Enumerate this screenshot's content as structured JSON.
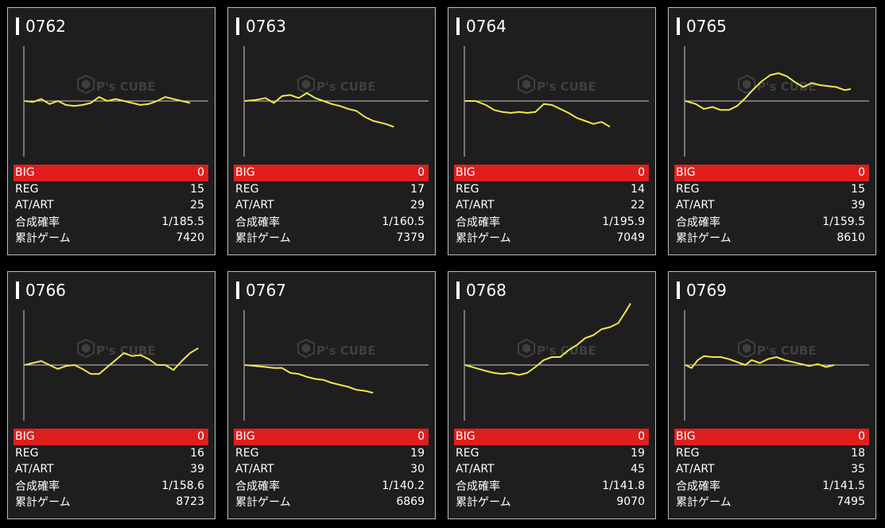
{
  "colors": {
    "background": "#000000",
    "card": "#1e1e1e",
    "border": "#bdbdbd",
    "big_row": "#df1f1f",
    "line": "#f2e64a",
    "axis": "#cccccc",
    "watermark": "#5a5a5a"
  },
  "watermark": {
    "brand": "P's CUBE"
  },
  "labels": {
    "big": "BIG",
    "reg": "REG",
    "at": "AT/ART",
    "prob": "合成確率",
    "games": "累計ゲーム"
  },
  "machines": [
    {
      "id": "0762",
      "big": "0",
      "reg": "15",
      "at": "25",
      "prob": "1/185.5",
      "games": "7420",
      "series": [
        [
          0,
          0
        ],
        [
          4,
          -1
        ],
        [
          8,
          2
        ],
        [
          12,
          -3
        ],
        [
          16,
          0
        ],
        [
          20,
          -4
        ],
        [
          24,
          -5
        ],
        [
          28,
          -4
        ],
        [
          32,
          -2
        ],
        [
          36,
          4
        ],
        [
          40,
          0
        ],
        [
          44,
          2
        ],
        [
          48,
          0
        ],
        [
          52,
          -2
        ],
        [
          56,
          -4
        ],
        [
          60,
          -3
        ],
        [
          64,
          0
        ],
        [
          68,
          4
        ],
        [
          72,
          2
        ],
        [
          76,
          0
        ],
        [
          80,
          -2
        ]
      ]
    },
    {
      "id": "0763",
      "big": "0",
      "reg": "17",
      "at": "29",
      "prob": "1/160.5",
      "games": "7379",
      "series": [
        [
          0,
          0
        ],
        [
          5,
          1
        ],
        [
          10,
          3
        ],
        [
          14,
          -2
        ],
        [
          18,
          5
        ],
        [
          22,
          6
        ],
        [
          26,
          3
        ],
        [
          30,
          8
        ],
        [
          34,
          3
        ],
        [
          38,
          0
        ],
        [
          42,
          -3
        ],
        [
          46,
          -5
        ],
        [
          50,
          -8
        ],
        [
          54,
          -10
        ],
        [
          58,
          -16
        ],
        [
          62,
          -20
        ],
        [
          68,
          -23
        ],
        [
          72,
          -26
        ]
      ]
    },
    {
      "id": "0764",
      "big": "0",
      "reg": "14",
      "at": "22",
      "prob": "1/195.9",
      "games": "7049",
      "series": [
        [
          0,
          0
        ],
        [
          5,
          0
        ],
        [
          10,
          -4
        ],
        [
          14,
          -9
        ],
        [
          18,
          -11
        ],
        [
          22,
          -12
        ],
        [
          26,
          -11
        ],
        [
          30,
          -12
        ],
        [
          34,
          -11
        ],
        [
          38,
          -3
        ],
        [
          42,
          -4
        ],
        [
          46,
          -8
        ],
        [
          50,
          -12
        ],
        [
          54,
          -17
        ],
        [
          58,
          -20
        ],
        [
          62,
          -23
        ],
        [
          66,
          -21
        ],
        [
          70,
          -26
        ]
      ]
    },
    {
      "id": "0765",
      "big": "0",
      "reg": "15",
      "at": "39",
      "prob": "1/159.5",
      "games": "8610",
      "series": [
        [
          0,
          0
        ],
        [
          5,
          -3
        ],
        [
          9,
          -8
        ],
        [
          13,
          -6
        ],
        [
          17,
          -9
        ],
        [
          21,
          -9
        ],
        [
          25,
          -5
        ],
        [
          29,
          3
        ],
        [
          33,
          12
        ],
        [
          37,
          20
        ],
        [
          41,
          26
        ],
        [
          45,
          28
        ],
        [
          49,
          25
        ],
        [
          53,
          19
        ],
        [
          57,
          14
        ],
        [
          61,
          18
        ],
        [
          65,
          16
        ],
        [
          69,
          15
        ],
        [
          73,
          14
        ],
        [
          77,
          11
        ],
        [
          80,
          12
        ]
      ]
    },
    {
      "id": "0766",
      "big": "0",
      "reg": "16",
      "at": "39",
      "prob": "1/158.6",
      "games": "8723",
      "series": [
        [
          0,
          0
        ],
        [
          4,
          2
        ],
        [
          8,
          4
        ],
        [
          12,
          0
        ],
        [
          16,
          -4
        ],
        [
          20,
          -1
        ],
        [
          24,
          0
        ],
        [
          28,
          -4
        ],
        [
          32,
          -9
        ],
        [
          36,
          -9
        ],
        [
          40,
          -2
        ],
        [
          44,
          5
        ],
        [
          48,
          12
        ],
        [
          52,
          9
        ],
        [
          56,
          10
        ],
        [
          60,
          6
        ],
        [
          64,
          0
        ],
        [
          68,
          0
        ],
        [
          72,
          -5
        ],
        [
          76,
          4
        ],
        [
          80,
          12
        ],
        [
          84,
          17
        ]
      ]
    },
    {
      "id": "0767",
      "big": "0",
      "reg": "19",
      "at": "30",
      "prob": "1/140.2",
      "games": "6869",
      "series": [
        [
          0,
          0
        ],
        [
          5,
          -1
        ],
        [
          10,
          -2
        ],
        [
          14,
          -3
        ],
        [
          18,
          -3
        ],
        [
          22,
          -8
        ],
        [
          26,
          -9
        ],
        [
          30,
          -12
        ],
        [
          34,
          -14
        ],
        [
          38,
          -15
        ],
        [
          42,
          -18
        ],
        [
          46,
          -20
        ],
        [
          50,
          -22
        ],
        [
          54,
          -25
        ],
        [
          58,
          -26
        ],
        [
          62,
          -28
        ]
      ]
    },
    {
      "id": "0768",
      "big": "0",
      "reg": "19",
      "at": "45",
      "prob": "1/141.8",
      "games": "9070",
      "series": [
        [
          0,
          0
        ],
        [
          5,
          -3
        ],
        [
          10,
          -6
        ],
        [
          14,
          -8
        ],
        [
          18,
          -9
        ],
        [
          22,
          -8
        ],
        [
          26,
          -10
        ],
        [
          30,
          -8
        ],
        [
          34,
          -2
        ],
        [
          38,
          5
        ],
        [
          42,
          8
        ],
        [
          46,
          8
        ],
        [
          50,
          15
        ],
        [
          54,
          20
        ],
        [
          58,
          27
        ],
        [
          62,
          30
        ],
        [
          66,
          36
        ],
        [
          70,
          38
        ],
        [
          74,
          42
        ],
        [
          78,
          55
        ],
        [
          80,
          62
        ]
      ]
    },
    {
      "id": "0769",
      "big": "0",
      "reg": "18",
      "at": "35",
      "prob": "1/141.5",
      "games": "7495",
      "series": [
        [
          0,
          0
        ],
        [
          3,
          -3
        ],
        [
          6,
          5
        ],
        [
          9,
          9
        ],
        [
          13,
          8
        ],
        [
          17,
          8
        ],
        [
          21,
          6
        ],
        [
          25,
          3
        ],
        [
          29,
          0
        ],
        [
          32,
          5
        ],
        [
          36,
          2
        ],
        [
          40,
          6
        ],
        [
          44,
          8
        ],
        [
          48,
          5
        ],
        [
          52,
          3
        ],
        [
          56,
          1
        ],
        [
          60,
          -1
        ],
        [
          64,
          1
        ],
        [
          68,
          -2
        ],
        [
          72,
          0
        ]
      ]
    }
  ]
}
